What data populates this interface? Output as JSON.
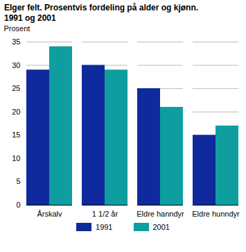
{
  "chart_data": {
    "type": "bar",
    "title": "Elger felt. Prosentvis fordeling på alder og kjønn.",
    "subtitle": "1991 og 2001",
    "y_label": "Prosent",
    "categories": [
      "Årskalv",
      "1 1/2 år",
      "Eldre hanndyr",
      "Eldre hunndyr"
    ],
    "series": [
      {
        "name": "1991",
        "color": "#0f2a9c",
        "values": [
          29,
          30,
          25,
          15
        ]
      },
      {
        "name": "2001",
        "color": "#0e9ea0",
        "values": [
          34,
          29,
          21,
          17
        ]
      }
    ],
    "ylim": [
      0,
      35
    ],
    "yticks": [
      0,
      5,
      10,
      15,
      20,
      25,
      30,
      35
    ],
    "grid": true,
    "legend": "bottom"
  }
}
